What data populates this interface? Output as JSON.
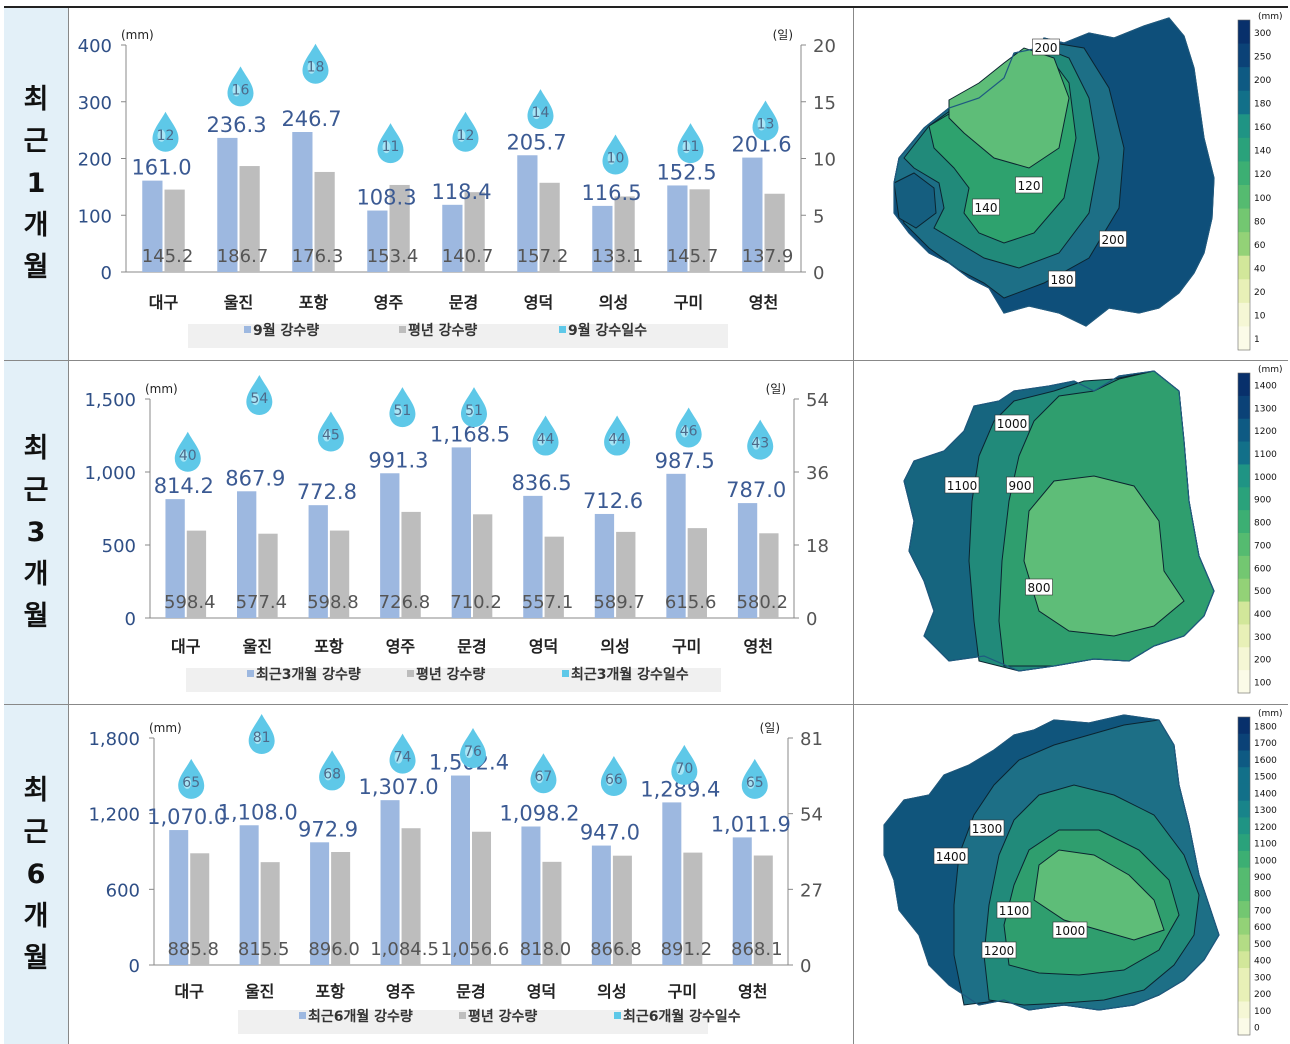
{
  "rows": [
    {
      "label": [
        "최",
        "근",
        "1",
        "개",
        "월"
      ],
      "chart_data": {
        "type": "bar",
        "categories": [
          "대구",
          "울진",
          "포항",
          "영주",
          "문경",
          "영덕",
          "의성",
          "구미",
          "영천"
        ],
        "series": [
          {
            "name": "9월 강수량",
            "values": [
              161.0,
              236.3,
              246.7,
              108.3,
              118.4,
              205.7,
              116.5,
              152.5,
              201.6
            ],
            "labels": [
              "161.0",
              "236.3",
              "246.7",
              "108.3",
              "118.4",
              "205.7",
              "116.5",
              "152.5",
              "201.6"
            ]
          },
          {
            "name": "평년 강수량",
            "values": [
              145.2,
              186.7,
              176.3,
              153.4,
              140.7,
              157.2,
              133.1,
              145.7,
              137.9
            ],
            "labels": [
              "145.2",
              "186.7",
              "176.3",
              "153.4",
              "140.7",
              "157.2",
              "133.1",
              "145.7",
              "137.9"
            ]
          },
          {
            "name": "9월 강수일수",
            "values": [
              12,
              16,
              18,
              11,
              12,
              14,
              10,
              11,
              13
            ]
          }
        ],
        "ylim": [
          0,
          400
        ],
        "yticks": [
          "0",
          "100",
          "200",
          "300",
          "400"
        ],
        "y2lim": [
          0,
          20
        ],
        "y2ticks": [
          "0",
          "5",
          "10",
          "15",
          "20"
        ],
        "yunit": "(mm)",
        "y2unit": "(일)"
      },
      "map": {
        "contour_labels": [
          "200",
          "120",
          "140",
          "200",
          "180"
        ]
      },
      "legend": {
        "unit": "(mm)",
        "ticks": [
          "300",
          "250",
          "200",
          "180",
          "160",
          "140",
          "120",
          "100",
          "80",
          "60",
          "40",
          "20",
          "10",
          "1"
        ]
      }
    },
    {
      "label": [
        "최",
        "근",
        "3",
        "개",
        "월"
      ],
      "chart_data": {
        "type": "bar",
        "categories": [
          "대구",
          "울진",
          "포항",
          "영주",
          "문경",
          "영덕",
          "의성",
          "구미",
          "영천"
        ],
        "series": [
          {
            "name": "최근3개월 강수량",
            "values": [
              814.2,
              867.9,
              772.8,
              991.3,
              1168.5,
              836.5,
              712.6,
              987.5,
              787.0
            ],
            "labels": [
              "814.2",
              "867.9",
              "772.8",
              "991.3",
              "1,168.5",
              "836.5",
              "712.6",
              "987.5",
              "787.0"
            ]
          },
          {
            "name": "평년 강수량",
            "values": [
              598.4,
              577.4,
              598.8,
              726.8,
              710.2,
              557.1,
              589.7,
              615.6,
              580.2
            ],
            "labels": [
              "598.4",
              "577.4",
              "598.8",
              "726.8",
              "710.2",
              "557.1",
              "589.7",
              "615.6",
              "580.2"
            ]
          },
          {
            "name": "최근3개월 강수일수",
            "values": [
              40,
              54,
              45,
              51,
              51,
              44,
              44,
              46,
              43
            ]
          }
        ],
        "ylim": [
          0,
          1500
        ],
        "yticks": [
          "0",
          "500",
          "1,000",
          "1,500"
        ],
        "y2lim": [
          0,
          54
        ],
        "y2ticks": [
          "0",
          "18",
          "36",
          "54"
        ],
        "yunit": "(mm)",
        "y2unit": "(일)"
      },
      "map": {
        "contour_labels": [
          "1000",
          "1100",
          "900",
          "800"
        ]
      },
      "legend": {
        "unit": "(mm)",
        "ticks": [
          "1400",
          "1300",
          "1200",
          "1100",
          "1000",
          "900",
          "800",
          "700",
          "600",
          "500",
          "400",
          "300",
          "200",
          "100"
        ]
      }
    },
    {
      "label": [
        "최",
        "근",
        "6",
        "개",
        "월"
      ],
      "chart_data": {
        "type": "bar",
        "categories": [
          "대구",
          "울진",
          "포항",
          "영주",
          "문경",
          "영덕",
          "의성",
          "구미",
          "영천"
        ],
        "series": [
          {
            "name": "최근6개월 강수량",
            "values": [
              1070.0,
              1108.0,
              972.9,
              1307.0,
              1502.4,
              1098.2,
              947.0,
              1289.4,
              1011.9
            ],
            "labels": [
              "1,070.0",
              "1,108.0",
              "972.9",
              "1,307.0",
              "1,502.4",
              "1,098.2",
              "947.0",
              "1,289.4",
              "1,011.9"
            ]
          },
          {
            "name": "평년 강수량",
            "values": [
              885.8,
              815.5,
              896.0,
              1084.5,
              1056.6,
              818.0,
              866.8,
              891.2,
              868.1
            ],
            "labels": [
              "885.8",
              "815.5",
              "896.0",
              "1,084.5",
              "1,056.6",
              "818.0",
              "866.8",
              "891.2",
              "868.1"
            ]
          },
          {
            "name": "최근6개월 강수일수",
            "values": [
              65,
              81,
              68,
              74,
              76,
              67,
              66,
              70,
              65
            ]
          }
        ],
        "ylim": [
          0,
          1800
        ],
        "yticks": [
          "0",
          "600",
          "1,200",
          "1,800"
        ],
        "y2lim": [
          0,
          81
        ],
        "y2ticks": [
          "0",
          "27",
          "54",
          "81"
        ],
        "yunit": "(mm)",
        "y2unit": "(일)"
      },
      "map": {
        "contour_labels": [
          "1300",
          "1400",
          "1100",
          "1000",
          "1200"
        ]
      },
      "legend": {
        "unit": "(mm)",
        "ticks": [
          "1800",
          "1700",
          "1600",
          "1500",
          "1400",
          "1300",
          "1200",
          "1100",
          "1000",
          "900",
          "800",
          "700",
          "600",
          "500",
          "400",
          "300",
          "200",
          "100",
          "0"
        ]
      }
    }
  ],
  "colors": {
    "bar_current": "#9db8e0",
    "bar_normal": "#bdbdbd",
    "drop": "#5ec8e8",
    "drop_light": "#b9ecf8",
    "value_text": "#3b5a93",
    "normal_text": "#555555",
    "label_bg": "#e3f0f8"
  }
}
